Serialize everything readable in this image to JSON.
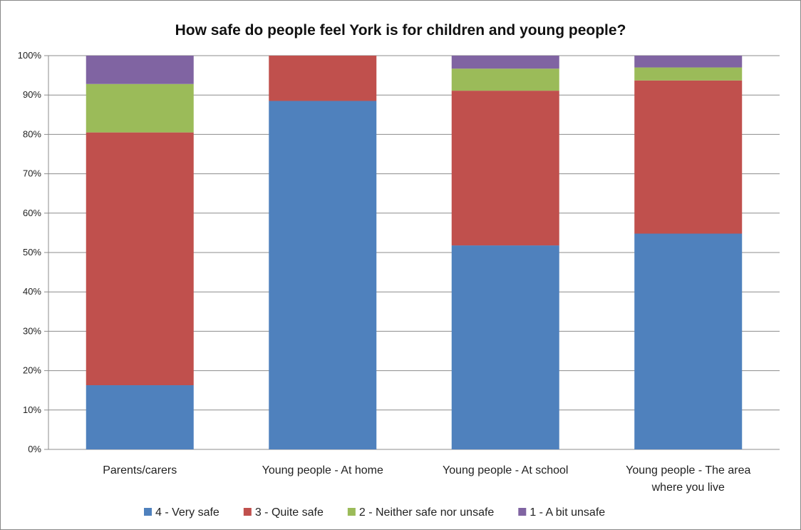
{
  "chart_data": {
    "type": "bar",
    "stacked": true,
    "percent": true,
    "title": "How safe do people feel York is for children and young people?",
    "categories": [
      "Parents/carers",
      "Young people - At home",
      "Young people - At school",
      "Young people - The area where you live"
    ],
    "category_lines": [
      [
        "Parents/carers"
      ],
      [
        "Young people - At home"
      ],
      [
        "Young people - At school"
      ],
      [
        "Young people - The area",
        "where you live"
      ]
    ],
    "series": [
      {
        "name": "4 - Very safe",
        "color": "#4F81BD",
        "values": [
          16.3,
          88.5,
          51.8,
          54.8
        ]
      },
      {
        "name": "3 - Quite safe",
        "color": "#C0504D",
        "values": [
          64.2,
          11.5,
          39.3,
          38.9
        ]
      },
      {
        "name": "2 - Neither safe nor unsafe",
        "color": "#9BBB59",
        "values": [
          12.3,
          0,
          5.6,
          3.3
        ]
      },
      {
        "name": "1 - A bit unsafe",
        "color": "#8064A2",
        "values": [
          7.2,
          0,
          3.3,
          3.0
        ]
      }
    ],
    "yticks": [
      "0%",
      "10%",
      "20%",
      "30%",
      "40%",
      "50%",
      "60%",
      "70%",
      "80%",
      "90%",
      "100%"
    ],
    "ylim": [
      0,
      100
    ],
    "xlabel": "",
    "ylabel": "",
    "grid": true,
    "legend_position": "bottom"
  }
}
